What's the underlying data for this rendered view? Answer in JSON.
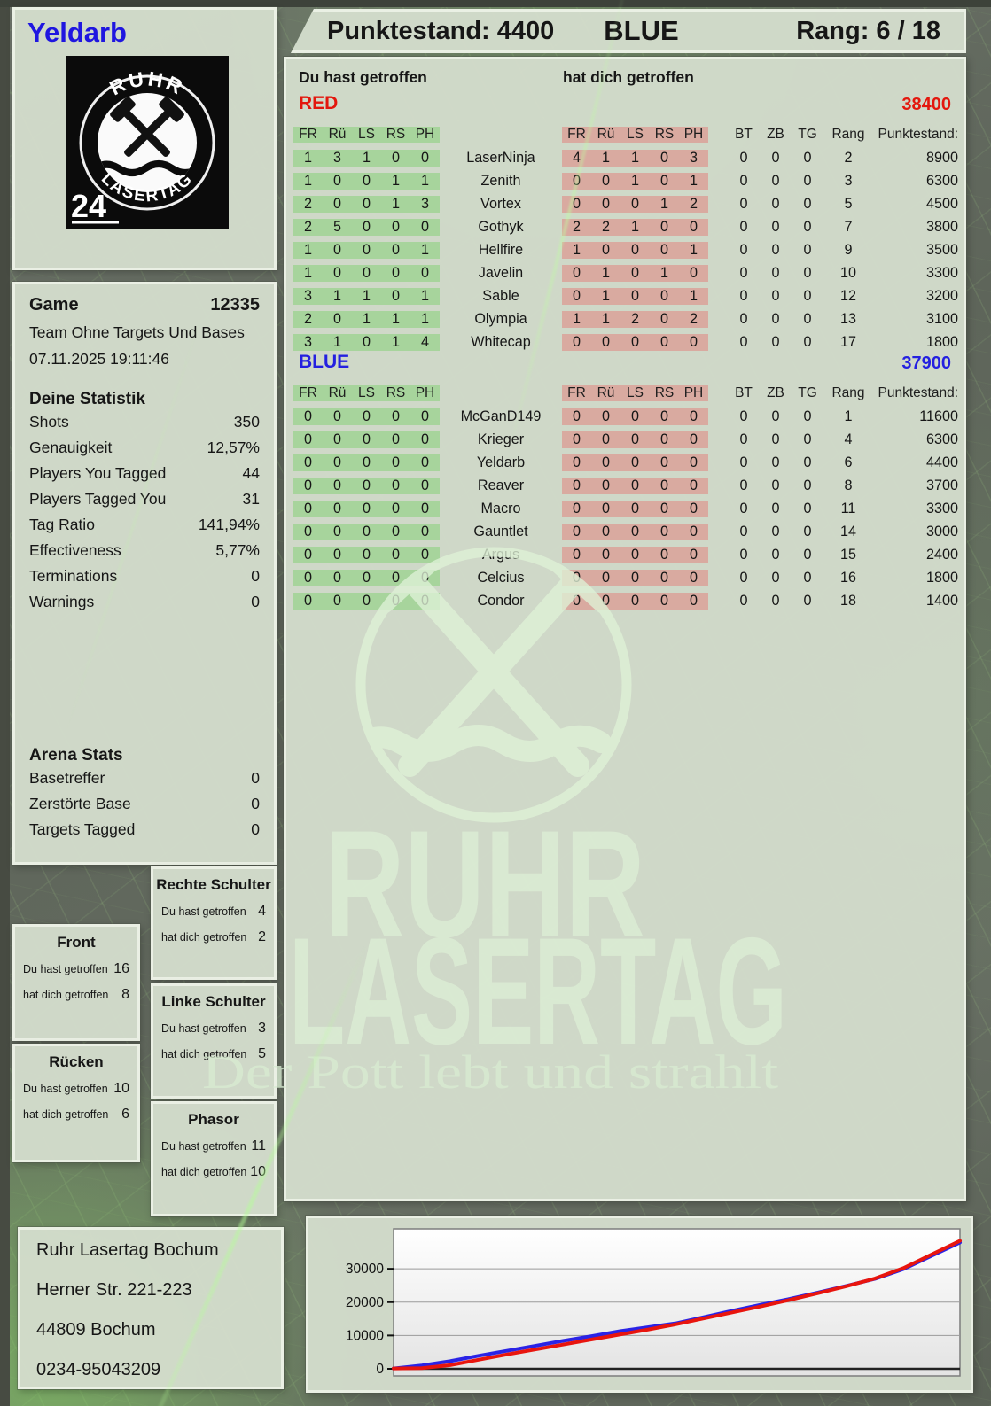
{
  "header": {
    "player": "Yeldarb",
    "points_label": "Punktestand: 4400",
    "team": "BLUE",
    "rank_label": "Rang: 6 / 18"
  },
  "logo": {
    "arc_top": "RUHR",
    "arc_bottom": "LASERTAG",
    "badge": "24"
  },
  "game": {
    "label": "Game",
    "id": "12335",
    "mode": "Team Ohne Targets Und Bases",
    "datetime": "07.11.2025 19:11:46"
  },
  "your_stats": {
    "title": "Deine Statistik",
    "rows": [
      {
        "label": "Shots",
        "value": "350"
      },
      {
        "label": "Genauigkeit",
        "value": "12,57%"
      },
      {
        "label": "Players You Tagged",
        "value": "44"
      },
      {
        "label": "Players Tagged You",
        "value": "31"
      },
      {
        "label": "Tag Ratio",
        "value": "141,94%"
      },
      {
        "label": "Effectiveness",
        "value": "5,77%"
      },
      {
        "label": "Terminations",
        "value": "0"
      },
      {
        "label": "Warnings",
        "value": "0"
      }
    ]
  },
  "arena_stats": {
    "title": "Arena Stats",
    "rows": [
      {
        "label": "Basetreffer",
        "value": "0"
      },
      {
        "label": "Zerstörte Base",
        "value": "0"
      },
      {
        "label": "Targets Tagged",
        "value": "0"
      }
    ]
  },
  "scoreboard": {
    "you_hit_label": "Du hast getroffen",
    "hit_you_label": "hat dich getroffen",
    "columns": [
      "FR",
      "Rü",
      "LS",
      "RS",
      "PH"
    ],
    "right_columns": [
      "BT",
      "ZB",
      "TG",
      "Rang",
      "Punktestand:"
    ],
    "red": {
      "team": "RED",
      "total": 38400,
      "rows": [
        {
          "you": [
            1,
            3,
            1,
            0,
            0
          ],
          "name": "LaserNinja",
          "them": [
            4,
            1,
            1,
            0,
            3
          ],
          "bt": 0,
          "zb": 0,
          "tg": 0,
          "rang": 2,
          "punkte": 8900
        },
        {
          "you": [
            1,
            0,
            0,
            1,
            1
          ],
          "name": "Zenith",
          "them": [
            0,
            0,
            1,
            0,
            1
          ],
          "bt": 0,
          "zb": 0,
          "tg": 0,
          "rang": 3,
          "punkte": 6300
        },
        {
          "you": [
            2,
            0,
            0,
            1,
            3
          ],
          "name": "Vortex",
          "them": [
            0,
            0,
            0,
            1,
            2
          ],
          "bt": 0,
          "zb": 0,
          "tg": 0,
          "rang": 5,
          "punkte": 4500
        },
        {
          "you": [
            2,
            5,
            0,
            0,
            0
          ],
          "name": "Gothyk",
          "them": [
            2,
            2,
            1,
            0,
            0
          ],
          "bt": 0,
          "zb": 0,
          "tg": 0,
          "rang": 7,
          "punkte": 3800
        },
        {
          "you": [
            1,
            0,
            0,
            0,
            1
          ],
          "name": "Hellfire",
          "them": [
            1,
            0,
            0,
            0,
            1
          ],
          "bt": 0,
          "zb": 0,
          "tg": 0,
          "rang": 9,
          "punkte": 3500
        },
        {
          "you": [
            1,
            0,
            0,
            0,
            0
          ],
          "name": "Javelin",
          "them": [
            0,
            1,
            0,
            1,
            0
          ],
          "bt": 0,
          "zb": 0,
          "tg": 0,
          "rang": 10,
          "punkte": 3300
        },
        {
          "you": [
            3,
            1,
            1,
            0,
            1
          ],
          "name": "Sable",
          "them": [
            0,
            1,
            0,
            0,
            1
          ],
          "bt": 0,
          "zb": 0,
          "tg": 0,
          "rang": 12,
          "punkte": 3200
        },
        {
          "you": [
            2,
            0,
            1,
            1,
            1
          ],
          "name": "Olympia",
          "them": [
            1,
            1,
            2,
            0,
            2
          ],
          "bt": 0,
          "zb": 0,
          "tg": 0,
          "rang": 13,
          "punkte": 3100
        },
        {
          "you": [
            3,
            1,
            0,
            1,
            4
          ],
          "name": "Whitecap",
          "them": [
            0,
            0,
            0,
            0,
            0
          ],
          "bt": 0,
          "zb": 0,
          "tg": 0,
          "rang": 17,
          "punkte": 1800
        }
      ]
    },
    "blue": {
      "team": "BLUE",
      "total": 37900,
      "rows": [
        {
          "you": [
            0,
            0,
            0,
            0,
            0
          ],
          "name": "McGanD149",
          "them": [
            0,
            0,
            0,
            0,
            0
          ],
          "bt": 0,
          "zb": 0,
          "tg": 0,
          "rang": 1,
          "punkte": 11600
        },
        {
          "you": [
            0,
            0,
            0,
            0,
            0
          ],
          "name": "Krieger",
          "them": [
            0,
            0,
            0,
            0,
            0
          ],
          "bt": 0,
          "zb": 0,
          "tg": 0,
          "rang": 4,
          "punkte": 6300
        },
        {
          "you": [
            0,
            0,
            0,
            0,
            0
          ],
          "name": "Yeldarb",
          "them": [
            0,
            0,
            0,
            0,
            0
          ],
          "bt": 0,
          "zb": 0,
          "tg": 0,
          "rang": 6,
          "punkte": 4400
        },
        {
          "you": [
            0,
            0,
            0,
            0,
            0
          ],
          "name": "Reaver",
          "them": [
            0,
            0,
            0,
            0,
            0
          ],
          "bt": 0,
          "zb": 0,
          "tg": 0,
          "rang": 8,
          "punkte": 3700
        },
        {
          "you": [
            0,
            0,
            0,
            0,
            0
          ],
          "name": "Macro",
          "them": [
            0,
            0,
            0,
            0,
            0
          ],
          "bt": 0,
          "zb": 0,
          "tg": 0,
          "rang": 11,
          "punkte": 3300
        },
        {
          "you": [
            0,
            0,
            0,
            0,
            0
          ],
          "name": "Gauntlet",
          "them": [
            0,
            0,
            0,
            0,
            0
          ],
          "bt": 0,
          "zb": 0,
          "tg": 0,
          "rang": 14,
          "punkte": 3000
        },
        {
          "you": [
            0,
            0,
            0,
            0,
            0
          ],
          "name": "Argus",
          "them": [
            0,
            0,
            0,
            0,
            0
          ],
          "bt": 0,
          "zb": 0,
          "tg": 0,
          "rang": 15,
          "punkte": 2400
        },
        {
          "you": [
            0,
            0,
            0,
            0,
            0
          ],
          "name": "Celcius",
          "them": [
            0,
            0,
            0,
            0,
            0
          ],
          "bt": 0,
          "zb": 0,
          "tg": 0,
          "rang": 16,
          "punkte": 1800
        },
        {
          "you": [
            0,
            0,
            0,
            0,
            0
          ],
          "name": "Condor",
          "them": [
            0,
            0,
            0,
            0,
            0
          ],
          "bt": 0,
          "zb": 0,
          "tg": 0,
          "rang": 18,
          "punkte": 1400
        }
      ]
    }
  },
  "body_parts": {
    "labels": {
      "you": "Du hast getroffen",
      "them": "hat dich getroffen"
    },
    "rechte": {
      "title": "Rechte Schulter",
      "you": 4,
      "them": 2
    },
    "front": {
      "title": "Front",
      "you": 16,
      "them": 8
    },
    "linke": {
      "title": "Linke Schulter",
      "you": 3,
      "them": 5
    },
    "ruecken": {
      "title": "Rücken",
      "you": 10,
      "them": 6
    },
    "phasor": {
      "title": "Phasor",
      "you": 11,
      "them": 10
    }
  },
  "watermark": {
    "line1": "RUHR",
    "line2": "LASERTAG",
    "slogan": "Der Pott lebt und strahlt"
  },
  "address": {
    "lines": [
      "Ruhr Lasertag Bochum",
      "Herner Str. 221-223",
      "44809 Bochum",
      "0234-95043209"
    ]
  },
  "colors": {
    "red_team": "#e3170d",
    "blue_team": "#2420e0",
    "green_cell": "#a7d49c",
    "pink_cell": "#d9aaa0",
    "panel": "#d3dccb",
    "chart_red": "#e8150e",
    "chart_blue": "#2a23e6"
  },
  "chart_data": {
    "type": "line",
    "title": "",
    "xlabel": "",
    "ylabel": "",
    "x": [
      0,
      0.05,
      0.1,
      0.15,
      0.2,
      0.25,
      0.3,
      0.35,
      0.4,
      0.45,
      0.5,
      0.55,
      0.6,
      0.65,
      0.7,
      0.75,
      0.8,
      0.85,
      0.9,
      0.95,
      1
    ],
    "series": [
      {
        "name": "BLUE",
        "color": "#2a23e6",
        "values": [
          100,
          1000,
          2300,
          3900,
          5400,
          6900,
          8400,
          9800,
          11300,
          12500,
          13700,
          15600,
          17500,
          19300,
          21000,
          22900,
          24900,
          27000,
          29900,
          33900,
          37900
        ]
      },
      {
        "name": "RED",
        "color": "#e8150e",
        "values": [
          100,
          200,
          1100,
          2700,
          4300,
          5800,
          7300,
          8800,
          10300,
          11800,
          13400,
          15200,
          17000,
          18800,
          20700,
          22700,
          24800,
          27100,
          30200,
          34300,
          38400
        ]
      }
    ],
    "yticks": [
      0,
      10000,
      20000,
      30000
    ],
    "ylim": [
      0,
      42000
    ],
    "grid": true,
    "legend_position": "none"
  }
}
